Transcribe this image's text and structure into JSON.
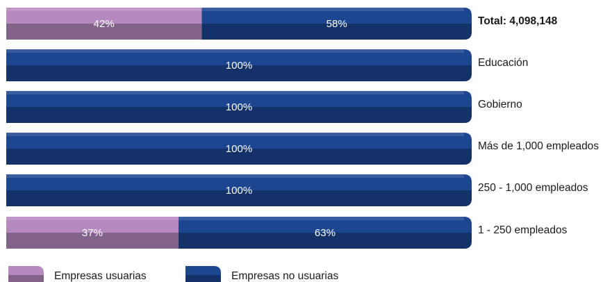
{
  "chart_data": {
    "type": "bar",
    "orientation": "horizontal",
    "stacked": true,
    "normalized": true,
    "categories": [
      "Total: 4,098,148",
      "Educación",
      "Gobierno",
      "Más de 1,000 empleados",
      "250 - 1,000 empleados",
      "1 - 250 empleados"
    ],
    "series": [
      {
        "name": "Empresas usuarias",
        "color": "#b589bf",
        "values": [
          42,
          0,
          0,
          0,
          0,
          37
        ],
        "labels": [
          "42%",
          "",
          "",
          "",
          "",
          "37%"
        ]
      },
      {
        "name": "Empresas no usuarias",
        "color": "#1d4690",
        "values": [
          58,
          100,
          100,
          100,
          100,
          63
        ],
        "labels": [
          "58%",
          "100%",
          "100%",
          "100%",
          "100%",
          "63%"
        ]
      }
    ],
    "xlim": [
      0,
      100
    ],
    "grid": false,
    "legend_position": "bottom-left"
  }
}
